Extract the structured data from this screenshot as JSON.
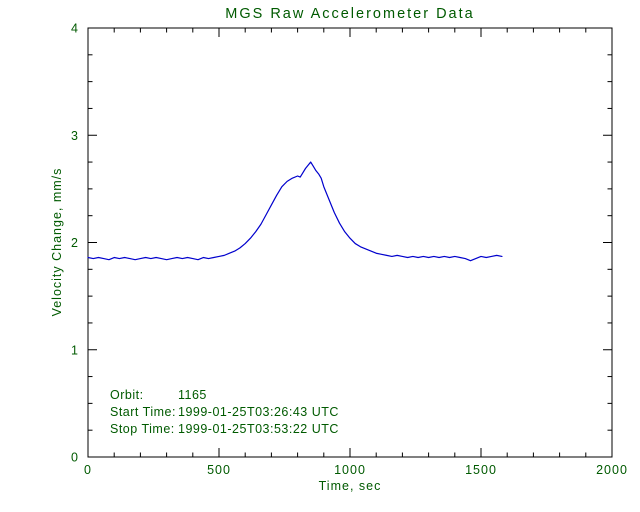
{
  "chart_data": {
    "type": "line",
    "title": "MGS Raw Accelerometer Data",
    "xlabel": "Time, sec",
    "ylabel": "Velocity Change, mm/s",
    "xlim": [
      0,
      2000
    ],
    "ylim": [
      0,
      4
    ],
    "xticks": [
      0,
      500,
      1000,
      1500,
      2000
    ],
    "yticks": [
      0,
      1,
      2,
      3,
      4
    ],
    "x_minor_interval": 100,
    "y_minor_interval": 0.25,
    "grid": false,
    "legend": "none",
    "colors": {
      "line": "#0000cd",
      "axis": "#000000",
      "text": "#005a00",
      "background": "#ffffff"
    },
    "annotations": {
      "rows": [
        {
          "label": "Orbit:",
          "value": "1165"
        },
        {
          "label": "Start Time:",
          "value": "1999-01-25T03:26:43 UTC"
        },
        {
          "label": "Stop Time:",
          "value": "1999-01-25T03:53:22 UTC"
        }
      ]
    },
    "series": [
      {
        "name": "velocity-change",
        "points": [
          [
            0,
            1.86
          ],
          [
            20,
            1.85
          ],
          [
            40,
            1.86
          ],
          [
            60,
            1.85
          ],
          [
            80,
            1.84
          ],
          [
            100,
            1.86
          ],
          [
            120,
            1.85
          ],
          [
            140,
            1.86
          ],
          [
            160,
            1.85
          ],
          [
            180,
            1.84
          ],
          [
            200,
            1.85
          ],
          [
            220,
            1.86
          ],
          [
            240,
            1.85
          ],
          [
            260,
            1.86
          ],
          [
            280,
            1.85
          ],
          [
            300,
            1.84
          ],
          [
            320,
            1.85
          ],
          [
            340,
            1.86
          ],
          [
            360,
            1.85
          ],
          [
            380,
            1.86
          ],
          [
            400,
            1.85
          ],
          [
            420,
            1.84
          ],
          [
            440,
            1.86
          ],
          [
            460,
            1.85
          ],
          [
            480,
            1.86
          ],
          [
            500,
            1.87
          ],
          [
            520,
            1.88
          ],
          [
            540,
            1.9
          ],
          [
            560,
            1.92
          ],
          [
            580,
            1.95
          ],
          [
            600,
            1.99
          ],
          [
            620,
            2.04
          ],
          [
            640,
            2.1
          ],
          [
            660,
            2.17
          ],
          [
            680,
            2.26
          ],
          [
            700,
            2.35
          ],
          [
            720,
            2.44
          ],
          [
            740,
            2.52
          ],
          [
            760,
            2.57
          ],
          [
            780,
            2.6
          ],
          [
            800,
            2.62
          ],
          [
            810,
            2.61
          ],
          [
            820,
            2.65
          ],
          [
            830,
            2.69
          ],
          [
            840,
            2.72
          ],
          [
            850,
            2.75
          ],
          [
            860,
            2.71
          ],
          [
            870,
            2.67
          ],
          [
            880,
            2.64
          ],
          [
            890,
            2.6
          ],
          [
            900,
            2.52
          ],
          [
            920,
            2.4
          ],
          [
            940,
            2.28
          ],
          [
            960,
            2.18
          ],
          [
            980,
            2.1
          ],
          [
            1000,
            2.04
          ],
          [
            1020,
            1.99
          ],
          [
            1040,
            1.96
          ],
          [
            1060,
            1.94
          ],
          [
            1080,
            1.92
          ],
          [
            1100,
            1.9
          ],
          [
            1120,
            1.89
          ],
          [
            1140,
            1.88
          ],
          [
            1160,
            1.87
          ],
          [
            1180,
            1.88
          ],
          [
            1200,
            1.87
          ],
          [
            1220,
            1.86
          ],
          [
            1240,
            1.87
          ],
          [
            1260,
            1.86
          ],
          [
            1280,
            1.87
          ],
          [
            1300,
            1.86
          ],
          [
            1320,
            1.87
          ],
          [
            1340,
            1.86
          ],
          [
            1360,
            1.87
          ],
          [
            1380,
            1.86
          ],
          [
            1400,
            1.87
          ],
          [
            1420,
            1.86
          ],
          [
            1440,
            1.85
          ],
          [
            1460,
            1.83
          ],
          [
            1480,
            1.85
          ],
          [
            1500,
            1.87
          ],
          [
            1520,
            1.86
          ],
          [
            1540,
            1.87
          ],
          [
            1560,
            1.88
          ],
          [
            1580,
            1.87
          ]
        ]
      }
    ]
  }
}
